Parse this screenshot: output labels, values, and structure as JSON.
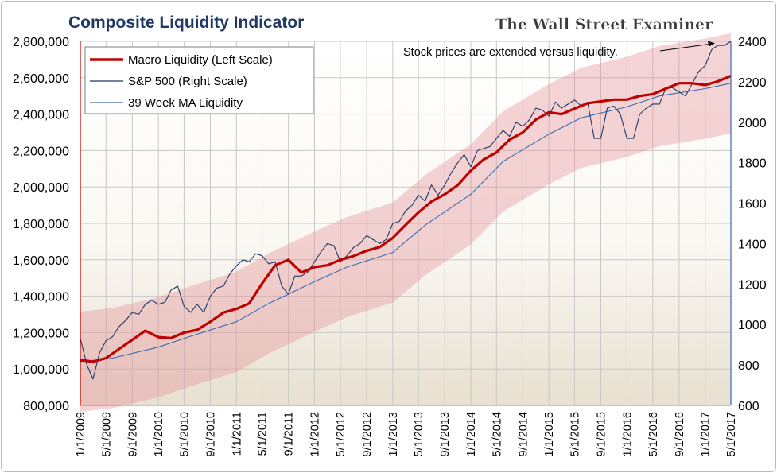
{
  "chart_data": {
    "type": "line",
    "title": "Composite Liquidity Indicator",
    "brand": "The Wall Street Examiner",
    "annotation": "Stock prices are extended versus liquidity.",
    "grid": true,
    "legend_position": "top-left",
    "left_axis": {
      "ylim": [
        800000,
        2800000
      ],
      "ticks": [
        "800,000",
        "1,000,000",
        "1,200,000",
        "1,400,000",
        "1,600,000",
        "1,800,000",
        "2,000,000",
        "2,200,000",
        "2,400,000",
        "2,600,000",
        "2,800,000"
      ]
    },
    "right_axis": {
      "ylim": [
        600,
        2400
      ],
      "ticks": [
        "600",
        "800",
        "1000",
        "1200",
        "1400",
        "1600",
        "1800",
        "2000",
        "2200",
        "2400"
      ]
    },
    "x_axis": {
      "range": [
        "2009-01-01",
        "2017-05-01"
      ],
      "ticks": [
        "1/1/2009",
        "5/1/2009",
        "9/1/2009",
        "1/1/2010",
        "5/1/2010",
        "9/1/2010",
        "1/1/2011",
        "5/1/2011",
        "9/1/2011",
        "1/1/2012",
        "5/1/2012",
        "9/1/2012",
        "1/1/2013",
        "5/1/2013",
        "9/1/2013",
        "1/1/2014",
        "5/1/2014",
        "9/1/2014",
        "1/1/2015",
        "5/1/2015",
        "9/1/2015",
        "1/1/2016",
        "5/1/2016",
        "9/1/2016",
        "1/1/2017",
        "5/1/2017"
      ]
    },
    "series": [
      {
        "name": "Macro Liquidity (Left Scale)",
        "axis": "left",
        "color": "#c00000",
        "x": [
          "2009-01-01",
          "2009-03-01",
          "2009-05-01",
          "2009-07-01",
          "2009-09-01",
          "2009-11-01",
          "2010-01-01",
          "2010-03-01",
          "2010-05-01",
          "2010-07-01",
          "2010-09-01",
          "2010-11-01",
          "2011-01-01",
          "2011-03-01",
          "2011-05-01",
          "2011-07-01",
          "2011-09-01",
          "2011-11-01",
          "2012-01-01",
          "2012-03-01",
          "2012-05-01",
          "2012-07-01",
          "2012-09-01",
          "2012-11-01",
          "2013-01-01",
          "2013-03-01",
          "2013-05-01",
          "2013-07-01",
          "2013-09-01",
          "2013-11-01",
          "2014-01-01",
          "2014-03-01",
          "2014-05-01",
          "2014-07-01",
          "2014-09-01",
          "2014-11-01",
          "2015-01-01",
          "2015-03-01",
          "2015-05-01",
          "2015-07-01",
          "2015-09-01",
          "2015-11-01",
          "2016-01-01",
          "2016-03-01",
          "2016-05-01",
          "2016-07-01",
          "2016-09-01",
          "2016-11-01",
          "2017-01-01",
          "2017-03-01",
          "2017-05-01"
        ],
        "values": [
          1050000,
          1040000,
          1060000,
          1110000,
          1160000,
          1210000,
          1175000,
          1170000,
          1200000,
          1215000,
          1260000,
          1310000,
          1330000,
          1360000,
          1470000,
          1570000,
          1600000,
          1530000,
          1560000,
          1570000,
          1600000,
          1620000,
          1650000,
          1670000,
          1720000,
          1790000,
          1860000,
          1920000,
          1960000,
          2010000,
          2090000,
          2150000,
          2190000,
          2260000,
          2300000,
          2370000,
          2410000,
          2400000,
          2430000,
          2460000,
          2470000,
          2480000,
          2480000,
          2500000,
          2510000,
          2540000,
          2570000,
          2570000,
          2560000,
          2580000,
          2610000
        ]
      },
      {
        "name": "S&P 500 (Right Scale)",
        "axis": "right",
        "color": "#1f3864",
        "x": [
          "2009-01-01",
          "2009-02-01",
          "2009-03-01",
          "2009-04-01",
          "2009-05-01",
          "2009-06-01",
          "2009-07-01",
          "2009-08-01",
          "2009-09-01",
          "2009-10-01",
          "2009-11-01",
          "2009-12-01",
          "2010-01-01",
          "2010-02-01",
          "2010-03-01",
          "2010-04-01",
          "2010-05-01",
          "2010-06-01",
          "2010-07-01",
          "2010-08-01",
          "2010-09-01",
          "2010-10-01",
          "2010-11-01",
          "2010-12-01",
          "2011-01-01",
          "2011-02-01",
          "2011-03-01",
          "2011-04-01",
          "2011-05-01",
          "2011-06-01",
          "2011-07-01",
          "2011-08-01",
          "2011-09-01",
          "2011-10-01",
          "2011-11-01",
          "2011-12-01",
          "2012-01-01",
          "2012-02-01",
          "2012-03-01",
          "2012-04-01",
          "2012-05-01",
          "2012-06-01",
          "2012-07-01",
          "2012-08-01",
          "2012-09-01",
          "2012-10-01",
          "2012-11-01",
          "2012-12-01",
          "2013-01-01",
          "2013-02-01",
          "2013-03-01",
          "2013-04-01",
          "2013-05-01",
          "2013-06-01",
          "2013-07-01",
          "2013-08-01",
          "2013-09-01",
          "2013-10-01",
          "2013-11-01",
          "2013-12-01",
          "2014-01-01",
          "2014-02-01",
          "2014-03-01",
          "2014-04-01",
          "2014-05-01",
          "2014-06-01",
          "2014-07-01",
          "2014-08-01",
          "2014-09-01",
          "2014-10-01",
          "2014-11-01",
          "2014-12-01",
          "2015-01-01",
          "2015-02-01",
          "2015-03-01",
          "2015-04-01",
          "2015-05-01",
          "2015-06-01",
          "2015-07-01",
          "2015-08-01",
          "2015-09-01",
          "2015-10-01",
          "2015-11-01",
          "2015-12-01",
          "2016-01-01",
          "2016-02-01",
          "2016-03-01",
          "2016-04-01",
          "2016-05-01",
          "2016-06-01",
          "2016-07-01",
          "2016-08-01",
          "2016-09-01",
          "2016-10-01",
          "2016-11-01",
          "2016-12-01",
          "2017-01-01",
          "2017-02-01",
          "2017-03-01",
          "2017-04-01",
          "2017-05-01"
        ],
        "values": [
          930,
          800,
          730,
          860,
          920,
          940,
          990,
          1020,
          1060,
          1050,
          1100,
          1120,
          1100,
          1110,
          1170,
          1190,
          1090,
          1060,
          1100,
          1060,
          1140,
          1180,
          1190,
          1250,
          1290,
          1320,
          1310,
          1350,
          1340,
          1300,
          1310,
          1190,
          1150,
          1240,
          1240,
          1260,
          1310,
          1360,
          1400,
          1390,
          1310,
          1340,
          1380,
          1400,
          1440,
          1420,
          1400,
          1420,
          1500,
          1510,
          1560,
          1590,
          1640,
          1610,
          1690,
          1640,
          1690,
          1750,
          1800,
          1840,
          1780,
          1860,
          1870,
          1880,
          1920,
          1960,
          1930,
          2000,
          1980,
          2010,
          2070,
          2060,
          2030,
          2100,
          2070,
          2090,
          2110,
          2080,
          2100,
          1920,
          1920,
          2070,
          2080,
          2040,
          1920,
          1920,
          2040,
          2070,
          2090,
          2090,
          2170,
          2170,
          2150,
          2130,
          2190,
          2250,
          2280,
          2360,
          2380,
          2380,
          2400
        ]
      },
      {
        "name": "39 Week MA Liquidity",
        "axis": "left",
        "color": "#3a6ab0",
        "x": [
          "2009-01-01",
          "2009-06-01",
          "2010-01-01",
          "2010-06-01",
          "2011-01-01",
          "2011-06-01",
          "2012-01-01",
          "2012-06-01",
          "2013-01-01",
          "2013-06-01",
          "2014-01-01",
          "2014-06-01",
          "2015-01-01",
          "2015-06-01",
          "2016-01-01",
          "2016-06-01",
          "2017-01-01",
          "2017-05-01"
        ],
        "values": [
          1040000,
          1060000,
          1120000,
          1180000,
          1260000,
          1360000,
          1480000,
          1560000,
          1640000,
          1790000,
          1960000,
          2140000,
          2290000,
          2380000,
          2440000,
          2500000,
          2540000,
          2570000
        ]
      }
    ]
  }
}
